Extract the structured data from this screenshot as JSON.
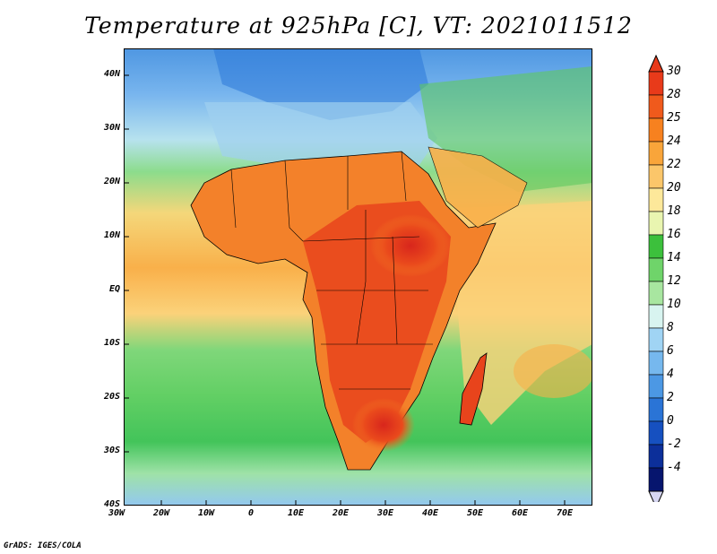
{
  "title": "Temperature at 925hPa [C], VT: 2021011512",
  "credit": "GrADS: IGES/COLA",
  "lat_labels": [
    "40N",
    "30N",
    "20N",
    "10N",
    "EQ",
    "10S",
    "20S",
    "30S",
    "40S"
  ],
  "lon_labels": [
    "30W",
    "20W",
    "10W",
    "0",
    "10E",
    "20E",
    "30E",
    "40E",
    "50E",
    "60E",
    "70E"
  ],
  "colorbar": {
    "labels": [
      "30",
      "28",
      "25",
      "24",
      "22",
      "20",
      "18",
      "16",
      "14",
      "12",
      "10",
      "8",
      "6",
      "4",
      "2",
      "0",
      "-2",
      "-4"
    ],
    "colors": [
      "#e83a1a",
      "#f05a1c",
      "#f7811f",
      "#f9a53a",
      "#fbc66a",
      "#fde89a",
      "#e9f5b0",
      "#3cc03c",
      "#6fd46a",
      "#a8e6a0",
      "#d8f4f0",
      "#a0d4f4",
      "#76b8ee",
      "#4c98e4",
      "#2a74d6",
      "#1650c0",
      "#0c2f9a",
      "#06156e"
    ]
  }
}
